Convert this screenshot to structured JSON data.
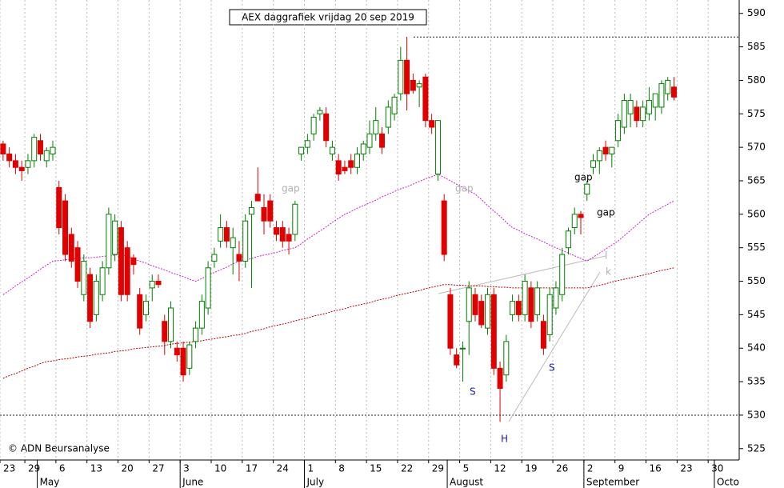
{
  "chart_data": {
    "type": "candlestick",
    "title": "AEX daggrafiek vrijdag 20 sep 2019",
    "source": "© ADN Beursanalyse",
    "categories": [
      "23",
      null,
      null,
      null,
      "29",
      null,
      null,
      null,
      null,
      "6",
      null,
      null,
      null,
      null,
      "13",
      null,
      null,
      null,
      null,
      "20",
      null,
      null,
      null,
      null,
      "27",
      null,
      null,
      null,
      null,
      "3",
      null,
      null,
      null,
      null,
      "10",
      null,
      null,
      null,
      null,
      "17",
      null,
      null,
      null,
      null,
      "24",
      null,
      null,
      null,
      null,
      "1",
      null,
      null,
      null,
      null,
      "8",
      null,
      null,
      null,
      null,
      "15",
      null,
      null,
      null,
      null,
      "22",
      null,
      null,
      null,
      null,
      "29",
      null,
      null,
      null,
      null,
      "5",
      null,
      null,
      null,
      null,
      "12",
      null,
      null,
      null,
      null,
      "19",
      null,
      null,
      null,
      null,
      "26",
      null,
      null,
      null,
      null,
      "2",
      null,
      null,
      null,
      null,
      "9",
      null,
      null,
      null,
      null,
      "16",
      null,
      null,
      null,
      null,
      "23",
      null,
      null,
      null,
      null,
      "30",
      null,
      null,
      null,
      null
    ],
    "months": [
      null,
      null,
      null,
      null,
      null,
      null,
      "May",
      null,
      null,
      null,
      null,
      null,
      null,
      null,
      null,
      null,
      null,
      null,
      null,
      null,
      null,
      null,
      null,
      null,
      null,
      null,
      null,
      null,
      null,
      "June",
      null,
      null,
      null,
      null,
      null,
      null,
      null,
      null,
      null,
      null,
      null,
      null,
      null,
      null,
      null,
      null,
      null,
      null,
      null,
      "July",
      null,
      null,
      null,
      null,
      null,
      null,
      null,
      null,
      null,
      null,
      null,
      null,
      null,
      null,
      null,
      null,
      null,
      null,
      null,
      null,
      null,
      null,
      "August",
      null,
      null,
      null,
      null,
      null,
      null,
      null,
      null,
      null,
      null,
      null,
      null,
      null,
      null,
      null,
      null,
      null,
      null,
      null,
      null,
      null,
      "September",
      null,
      null,
      null,
      null,
      null,
      null,
      null,
      null,
      null,
      null,
      null,
      null,
      null,
      null,
      null,
      null,
      null,
      null,
      null,
      null,
      "Octo",
      null,
      null,
      null
    ],
    "open": [
      570.5,
      569,
      568,
      567,
      567,
      568,
      571,
      568,
      569,
      564,
      562,
      557,
      555,
      548,
      551,
      545,
      548,
      552,
      554,
      558,
      555,
      553.5,
      548,
      545,
      549,
      550,
      544,
      541,
      540,
      540,
      537,
      541,
      543,
      546,
      553,
      556,
      558,
      555,
      554,
      553,
      560,
      563,
      561,
      562,
      558,
      558,
      557,
      557,
      569,
      570,
      572,
      575,
      575,
      569,
      568,
      567,
      568,
      567,
      569,
      570,
      572,
      572,
      573,
      575,
      578,
      583,
      580,
      579,
      580.5,
      574,
      566,
      562,
      548,
      539,
      540,
      544,
      548,
      547,
      543,
      548,
      537,
      536,
      545,
      547,
      545,
      549,
      545,
      544,
      542,
      546,
      548,
      555,
      558,
      560,
      563,
      567,
      568,
      570,
      569,
      571,
      573,
      575,
      576,
      574,
      575,
      576,
      576,
      578,
      579,
      null,
      null,
      null,
      null,
      null,
      null,
      null,
      null,
      null,
      null
    ],
    "high": [
      571,
      570,
      569,
      568,
      569,
      572,
      572,
      570,
      571,
      565,
      563,
      558,
      556,
      554,
      552,
      551,
      553,
      561,
      560,
      559,
      556,
      554,
      549,
      548,
      551,
      551,
      545,
      547,
      541,
      541,
      541,
      544,
      548,
      553,
      555,
      560,
      559,
      558,
      556,
      560,
      562,
      567,
      563,
      563,
      559,
      559,
      558,
      562,
      570,
      572,
      575,
      576,
      576,
      571,
      569,
      568,
      569,
      570,
      571,
      574,
      576,
      573,
      577,
      578,
      585,
      586.5,
      581,
      580,
      581,
      575,
      574,
      563,
      549,
      540,
      541,
      550,
      549,
      548,
      549,
      549,
      538,
      542,
      548,
      548,
      551,
      550,
      550,
      545,
      549,
      550,
      555,
      558,
      561,
      560.5,
      565,
      569,
      570,
      571,
      570,
      575,
      578,
      578,
      577,
      577,
      579,
      578,
      580,
      580.5,
      580.5,
      null,
      null,
      null,
      null,
      null,
      null,
      null,
      null,
      null,
      null
    ],
    "low": [
      568,
      567,
      566,
      565,
      566,
      567,
      568,
      567,
      568,
      557,
      553,
      552,
      549,
      547,
      543,
      544,
      547,
      551,
      553,
      547,
      547,
      551,
      542,
      544,
      547,
      549,
      539,
      540,
      538,
      535,
      536,
      540,
      542,
      545,
      552,
      555,
      555,
      551,
      550,
      552,
      549,
      562,
      557,
      558,
      556,
      555,
      554,
      556,
      568,
      569,
      571,
      574,
      570,
      568,
      565,
      566,
      566,
      566,
      568,
      569,
      571,
      569,
      572,
      574,
      577,
      575.5,
      578,
      576,
      573,
      572,
      565,
      553,
      539,
      537,
      535,
      539,
      544,
      543,
      542,
      536,
      529,
      535,
      544,
      544,
      544,
      543,
      544,
      539,
      541,
      545,
      547,
      554,
      557,
      557,
      562,
      566,
      566,
      568,
      567,
      570,
      572,
      573,
      573,
      573,
      574,
      574,
      575,
      577,
      577,
      null,
      null,
      null,
      null,
      null,
      null,
      null,
      null,
      null,
      null
    ],
    "close": [
      569,
      568,
      567,
      566.5,
      568,
      571.5,
      569,
      569.5,
      570,
      558,
      554,
      553,
      550,
      553,
      544,
      550,
      552,
      560,
      559,
      548,
      548,
      552.5,
      543,
      547,
      550,
      549.5,
      541,
      546,
      539,
      536,
      540.5,
      543,
      547,
      552,
      554,
      558,
      556,
      556.5,
      553,
      559,
      561,
      562,
      559,
      559,
      557,
      556,
      556,
      561.5,
      570,
      571,
      574.5,
      575.5,
      571,
      570,
      566,
      566.5,
      567,
      569,
      570.5,
      572,
      574,
      570,
      576,
      577.5,
      583,
      578,
      578.5,
      579.5,
      574,
      573,
      574,
      554,
      540,
      537.5,
      540,
      549,
      545,
      543.5,
      548,
      537,
      534,
      541,
      547,
      545,
      550,
      544,
      549,
      540,
      548,
      549,
      554,
      557.5,
      560,
      559.5,
      564.5,
      568,
      569.5,
      569,
      570,
      574,
      577,
      577,
      574,
      576,
      577,
      578,
      579.5,
      580,
      577.5,
      null,
      null,
      null,
      null,
      null,
      null,
      null,
      null,
      null,
      null
    ],
    "up_color": "#008000",
    "down_color": "#e00000",
    "moving_averages": [
      {
        "color": "#d020d0",
        "values": [
          548,
          548.6,
          549.3,
          549.9,
          550.5,
          551.1,
          551.8,
          552.4,
          553,
          553.1,
          553.2,
          553.3,
          553.4,
          553.5,
          553.5,
          553.6,
          553.7,
          553.8,
          553.9,
          554,
          553.7,
          553.3,
          553,
          552.7,
          552.3,
          552,
          551.7,
          551.3,
          551,
          550.7,
          550.3,
          550,
          550.4,
          550.9,
          551.3,
          551.7,
          552.1,
          552.6,
          553,
          553.2,
          553.4,
          553.7,
          553.9,
          554.1,
          554.3,
          554.6,
          554.8,
          555,
          555.6,
          556.3,
          556.9,
          557.5,
          558.1,
          558.8,
          559.4,
          560,
          560.4,
          560.9,
          561.3,
          561.7,
          562.1,
          562.6,
          563,
          563.4,
          563.8,
          564.1,
          564.5,
          564.9,
          565.3,
          565.6,
          566,
          565.5,
          565,
          564.5,
          564,
          563.5,
          563,
          562.2,
          561.3,
          560.5,
          559.7,
          558.8,
          558,
          557.6,
          557.1,
          556.7,
          556.3,
          555.9,
          555.4,
          555,
          554.6,
          554.2,
          553.8,
          553.4,
          553,
          553.6,
          554.2,
          554.8,
          555.4,
          556,
          556.8,
          557.6,
          558.4,
          559.2,
          560,
          560.5,
          561,
          561.5,
          562,
          null,
          null,
          null,
          null,
          null,
          null,
          null,
          null,
          null,
          null
        ]
      },
      {
        "color": "#c00000",
        "values": [
          535.5,
          535.9,
          536.2,
          536.6,
          537,
          537.3,
          537.7,
          538,
          538.1,
          538.3,
          538.4,
          538.5,
          538.7,
          538.8,
          538.9,
          539.1,
          539.2,
          539.3,
          539.5,
          539.6,
          539.7,
          539.9,
          540,
          540.1,
          540.2,
          540.3,
          540.4,
          540.6,
          540.7,
          540.8,
          540.9,
          541,
          541.1,
          541.3,
          541.4,
          541.6,
          541.7,
          541.9,
          542,
          542.2,
          542.5,
          542.7,
          542.9,
          543.2,
          543.4,
          543.6,
          543.8,
          544.1,
          544.3,
          544.5,
          544.8,
          545,
          545.2,
          545.5,
          545.7,
          545.9,
          546.2,
          546.4,
          546.6,
          546.8,
          547.1,
          547.3,
          547.5,
          547.8,
          548,
          548.2,
          548.4,
          548.6,
          548.9,
          549.1,
          549.3,
          549.5,
          549.5,
          549.4,
          549.4,
          549.3,
          549.3,
          549.3,
          549.2,
          549.2,
          549.1,
          549.1,
          549,
          549,
          549,
          549,
          549,
          549,
          549,
          549,
          549,
          549,
          549,
          549,
          549,
          549.2,
          549.4,
          549.6,
          549.9,
          550.1,
          550.3,
          550.5,
          550.7,
          550.9,
          551.1,
          551.4,
          551.6,
          551.8,
          552,
          null,
          null,
          null,
          null,
          null,
          null,
          null,
          null,
          null,
          null
        ]
      }
    ],
    "annotations": [
      {
        "text": "gap",
        "color": "#b0b0b0"
      },
      {
        "text": "gap",
        "color": "#b0b0b0"
      },
      {
        "text": "gap",
        "color": "#000000"
      },
      {
        "text": "gap",
        "color": "#000000"
      },
      {
        "text": "S",
        "color": "#1a1aa0"
      },
      {
        "text": "H",
        "color": "#1a1aa0"
      },
      {
        "text": "S",
        "color": "#1a1aa0"
      },
      {
        "text": "l",
        "color": "#b0b0b0"
      },
      {
        "text": "k",
        "color": "#b0b0b0"
      }
    ],
    "ylim": [
      523.3,
      592
    ],
    "yticks": [
      525,
      530,
      535,
      540,
      545,
      550,
      555,
      560,
      565,
      570,
      575,
      580,
      585,
      590
    ]
  }
}
